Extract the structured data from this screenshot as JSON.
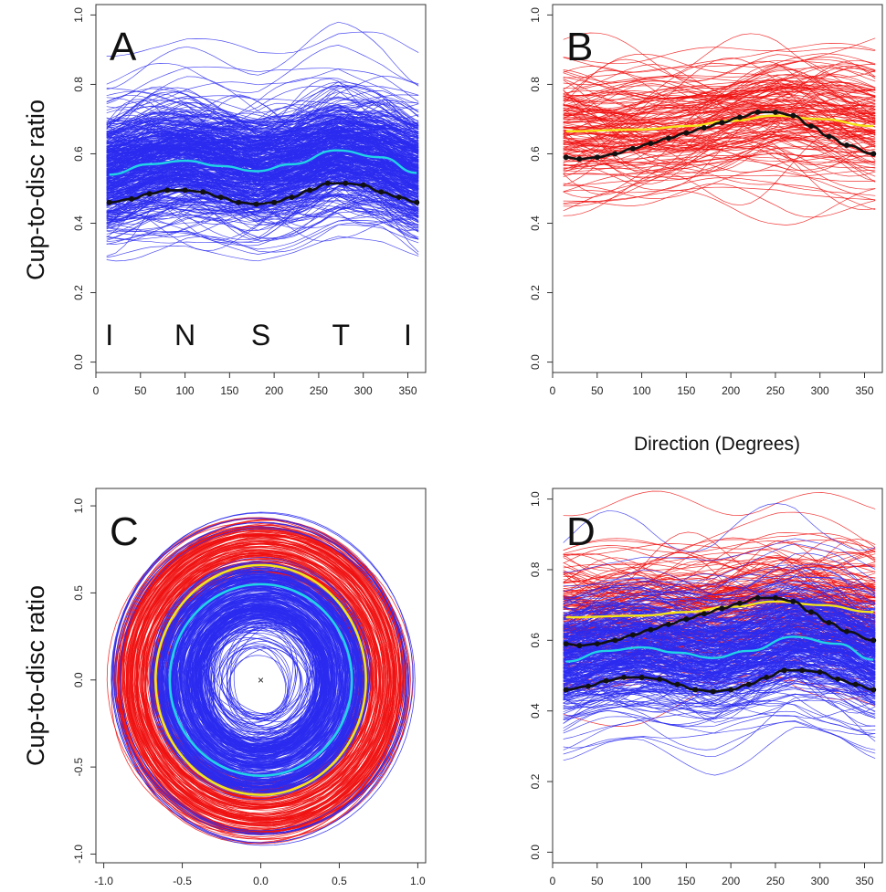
{
  "labels": {
    "ylabel_top": "Cup-to-disc ratio",
    "ylabel_bottom": "Cup-to-disc ratio",
    "xlabel_middle": "Direction (Degrees)"
  },
  "colors": {
    "normal_curves": "#2b2bf0",
    "glaucoma_curves": "#f01010",
    "normal_mean": "#22d3e6",
    "glaucoma_mean": "#f5e41a",
    "model_points": "#111111"
  },
  "chart_data": [
    {
      "panel": "A",
      "type": "line",
      "xlim": [
        0,
        370
      ],
      "ylim": [
        -0.03,
        1.03
      ],
      "x_ticks": [
        "0",
        "50",
        "100",
        "150",
        "200",
        "250",
        "300",
        "350"
      ],
      "y_ticks": [
        "0.0",
        "0.2",
        "0.4",
        "0.6",
        "0.8",
        "1.0"
      ],
      "region_labels": [
        "I",
        "N",
        "S",
        "T",
        "I"
      ],
      "region_x": [
        15,
        100,
        185,
        275,
        350
      ],
      "curve_band": {
        "group": "normal",
        "center": 0.55,
        "core_spread": 0.09,
        "outer_min": 0.17,
        "outer_max": 0.99
      },
      "series": [
        {
          "name": "",
          "style": "mean-normal",
          "x": [
            15,
            60,
            100,
            140,
            180,
            220,
            270,
            320,
            360
          ],
          "y": [
            0.54,
            0.57,
            0.58,
            0.565,
            0.55,
            0.57,
            0.61,
            0.59,
            0.545
          ]
        },
        {
          "name": "",
          "style": "model-normal",
          "x": [
            15,
            40,
            60,
            80,
            100,
            120,
            140,
            160,
            180,
            200,
            220,
            240,
            260,
            280,
            300,
            320,
            340,
            360
          ],
          "y": [
            0.46,
            0.47,
            0.485,
            0.495,
            0.495,
            0.49,
            0.475,
            0.46,
            0.455,
            0.46,
            0.475,
            0.495,
            0.515,
            0.515,
            0.51,
            0.49,
            0.475,
            0.46
          ]
        }
      ]
    },
    {
      "panel": "B",
      "type": "line",
      "xlim": [
        0,
        370
      ],
      "ylim": [
        -0.03,
        1.03
      ],
      "x_ticks": [
        "0",
        "50",
        "100",
        "150",
        "200",
        "250",
        "300",
        "350"
      ],
      "y_ticks": [
        "0.0",
        "0.2",
        "0.4",
        "0.6",
        "0.8",
        "1.0"
      ],
      "curve_band": {
        "group": "glaucoma",
        "center": 0.68,
        "core_spread": 0.1,
        "outer_min": 0.34,
        "outer_max": 0.95
      },
      "series": [
        {
          "name": "",
          "style": "mean-glaucoma",
          "x": [
            15,
            100,
            150,
            200,
            250,
            300,
            360
          ],
          "y": [
            0.665,
            0.67,
            0.68,
            0.695,
            0.71,
            0.7,
            0.68
          ]
        },
        {
          "name": "",
          "style": "model-glaucoma",
          "x": [
            15,
            30,
            50,
            70,
            90,
            110,
            130,
            150,
            170,
            190,
            210,
            230,
            250,
            270,
            290,
            310,
            330,
            360
          ],
          "y": [
            0.59,
            0.585,
            0.59,
            0.6,
            0.615,
            0.63,
            0.645,
            0.66,
            0.675,
            0.69,
            0.705,
            0.72,
            0.72,
            0.71,
            0.68,
            0.65,
            0.625,
            0.6
          ]
        }
      ]
    },
    {
      "panel": "C",
      "type": "line",
      "xlim": [
        -1.05,
        1.05
      ],
      "ylim": [
        -1.05,
        1.1
      ],
      "x_ticks": [
        "-1.0",
        "-0.5",
        "0.0",
        "0.5",
        "1.0"
      ],
      "y_ticks": [
        "-1.0",
        "-0.5",
        "0.0",
        "0.5",
        "1.0"
      ],
      "center_marker": "×",
      "ring_bands": [
        {
          "group": "glaucoma",
          "radius_min": 0.62,
          "radius_max": 0.93
        },
        {
          "group": "normal",
          "radius_min": 0.18,
          "radius_max": 0.98
        }
      ],
      "series": [
        {
          "name": "",
          "style": "mean-glaucoma-ring",
          "radius_x": 0.67,
          "radius_y": 0.66
        },
        {
          "name": "",
          "style": "mean-normal-ring",
          "radius_x": 0.58,
          "radius_y": 0.55
        }
      ]
    },
    {
      "panel": "D",
      "type": "line",
      "xlim": [
        0,
        370
      ],
      "ylim": [
        -0.03,
        1.03
      ],
      "x_ticks": [
        "0",
        "50",
        "100",
        "150",
        "200",
        "250",
        "300",
        "350"
      ],
      "y_ticks": [
        "0.0",
        "0.2",
        "0.4",
        "0.6",
        "0.8",
        "1.0"
      ],
      "curve_band": {
        "group": "combined",
        "normal_center": 0.55,
        "glaucoma_center": 0.68
      },
      "series": [
        {
          "name": "",
          "style": "mean-glaucoma",
          "x": [
            15,
            100,
            150,
            200,
            250,
            300,
            360
          ],
          "y": [
            0.665,
            0.67,
            0.68,
            0.695,
            0.71,
            0.7,
            0.68
          ]
        },
        {
          "name": "",
          "style": "mean-normal",
          "x": [
            15,
            60,
            100,
            140,
            180,
            220,
            270,
            320,
            360
          ],
          "y": [
            0.54,
            0.57,
            0.58,
            0.565,
            0.55,
            0.57,
            0.61,
            0.59,
            0.545
          ]
        },
        {
          "name": "",
          "style": "model-glaucoma",
          "x": [
            15,
            30,
            50,
            70,
            90,
            110,
            130,
            150,
            170,
            190,
            210,
            230,
            250,
            270,
            290,
            310,
            330,
            360
          ],
          "y": [
            0.59,
            0.585,
            0.59,
            0.6,
            0.615,
            0.63,
            0.645,
            0.66,
            0.675,
            0.69,
            0.705,
            0.72,
            0.72,
            0.71,
            0.68,
            0.65,
            0.625,
            0.6
          ]
        },
        {
          "name": "",
          "style": "model-normal",
          "x": [
            15,
            40,
            60,
            80,
            100,
            120,
            140,
            160,
            180,
            200,
            220,
            240,
            260,
            280,
            300,
            320,
            340,
            360
          ],
          "y": [
            0.46,
            0.47,
            0.485,
            0.495,
            0.495,
            0.49,
            0.475,
            0.46,
            0.455,
            0.46,
            0.475,
            0.495,
            0.515,
            0.515,
            0.51,
            0.49,
            0.475,
            0.46
          ]
        }
      ]
    }
  ]
}
